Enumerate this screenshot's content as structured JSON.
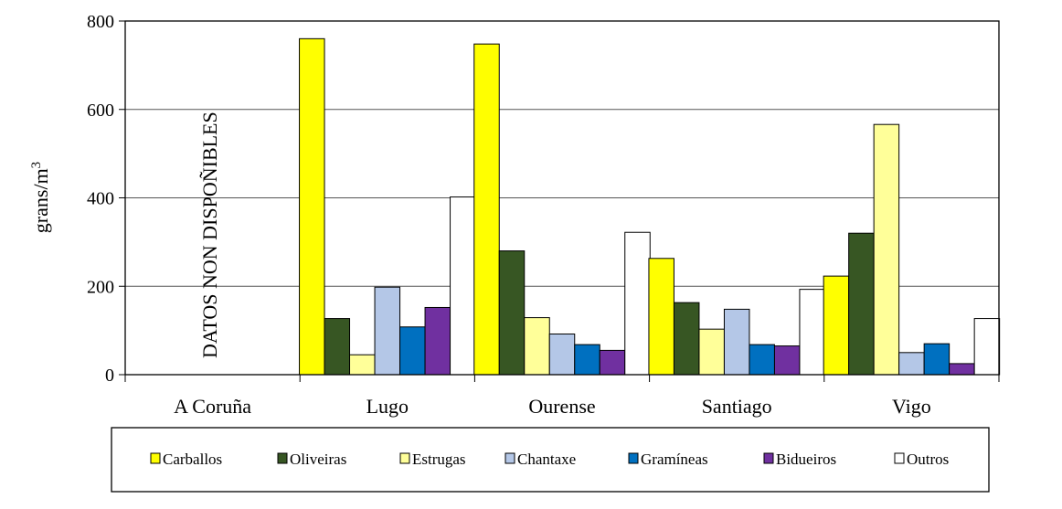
{
  "chart_data": {
    "type": "bar",
    "title": "",
    "xlabel": "",
    "ylabel": "grans/m",
    "ylabel_superscript": "3",
    "ylim": [
      0,
      800
    ],
    "yticks": [
      0,
      200,
      400,
      600,
      800
    ],
    "grid": true,
    "categories": [
      "A Coruña",
      "Lugo",
      "Ourense",
      "Santiago",
      "Vigo"
    ],
    "annotation": "DATOS NON DISPOÑIBLES",
    "legend_position": "bottom",
    "series": [
      {
        "name": "Carballos",
        "color": "#ffff00",
        "values": [
          null,
          760,
          748,
          263,
          223
        ]
      },
      {
        "name": "Oliveiras",
        "color": "#375623",
        "values": [
          null,
          127,
          280,
          163,
          320
        ]
      },
      {
        "name": "Estrugas",
        "color": "#ffff99",
        "values": [
          null,
          45,
          129,
          103,
          566
        ]
      },
      {
        "name": "Chantaxe",
        "color": "#b4c7e7",
        "values": [
          null,
          198,
          92,
          148,
          50
        ]
      },
      {
        "name": "Gramíneas",
        "color": "#0070c0",
        "values": [
          null,
          108,
          68,
          68,
          70
        ]
      },
      {
        "name": "Bidueiros",
        "color": "#7030a0",
        "values": [
          null,
          152,
          55,
          65,
          25
        ]
      },
      {
        "name": "Outros",
        "color": "#ffffff",
        "values": [
          null,
          402,
          322,
          193,
          127
        ]
      }
    ]
  }
}
